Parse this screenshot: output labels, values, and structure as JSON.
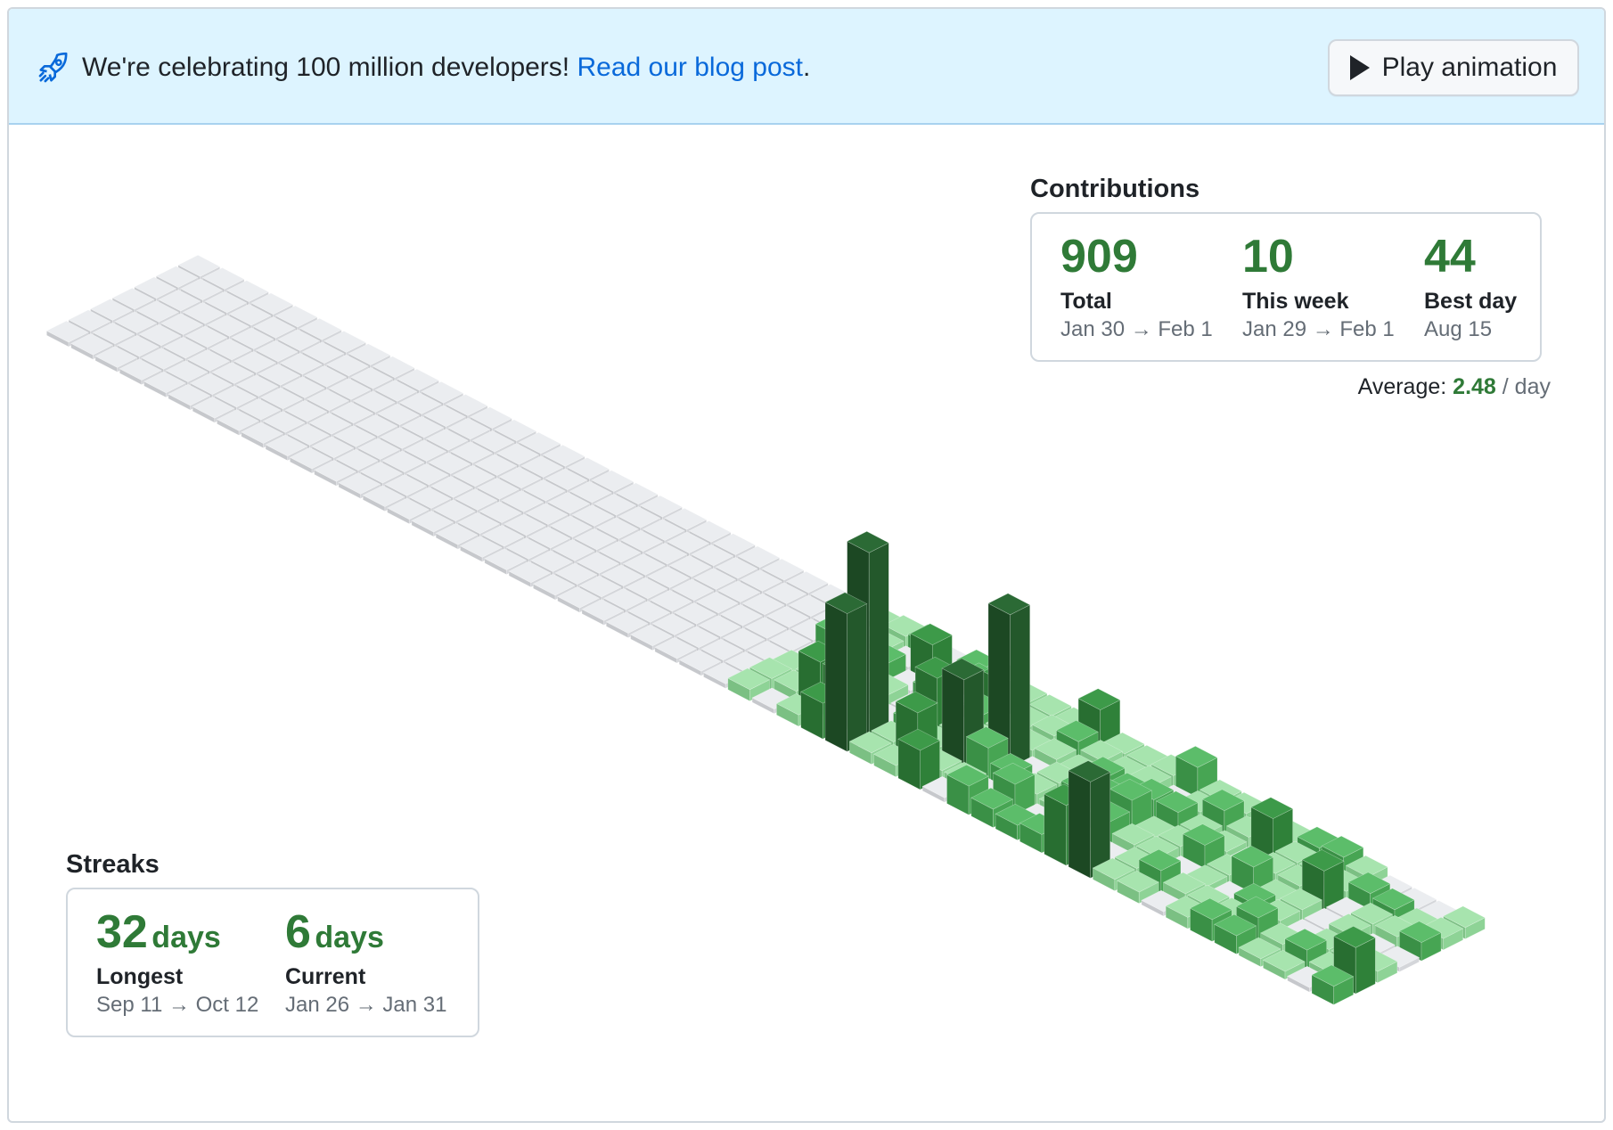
{
  "banner": {
    "text": "We're celebrating 100 million developers! ",
    "link_text": "Read our blog post",
    "after_link": ".",
    "icon": "rocket-icon",
    "button_label": "Play animation",
    "button_icon": "play-icon"
  },
  "contributions": {
    "title": "Contributions",
    "total": {
      "value": "909",
      "label": "Total",
      "range": "Jan 30 → Feb 1"
    },
    "this_week": {
      "value": "10",
      "label": "This week",
      "range": "Jan 29 → Feb 1"
    },
    "best_day": {
      "value": "44",
      "label": "Best day",
      "range": "Aug 15"
    },
    "average": {
      "prefix": "Average: ",
      "value": "2.48",
      "suffix": " / day"
    }
  },
  "streaks": {
    "title": "Streaks",
    "longest": {
      "value": "32",
      "unit": "days",
      "label": "Longest",
      "range": "Sep 11 → Oct 12"
    },
    "current": {
      "value": "6",
      "unit": "days",
      "label": "Current",
      "range": "Jan 26 → Jan 31"
    }
  },
  "colors": {
    "empty_top": "#ebedf0",
    "level1": "#9be9a8",
    "level2": "#40c463",
    "level3": "#30a14e",
    "level4": "#216e39",
    "accent_green": "#2f7a37",
    "link_blue": "#0969da"
  },
  "chart_data": {
    "type": "heatmap",
    "weeks": 53,
    "days_per_week": 7,
    "levels": [
      0,
      1,
      2,
      3,
      4
    ]
  }
}
